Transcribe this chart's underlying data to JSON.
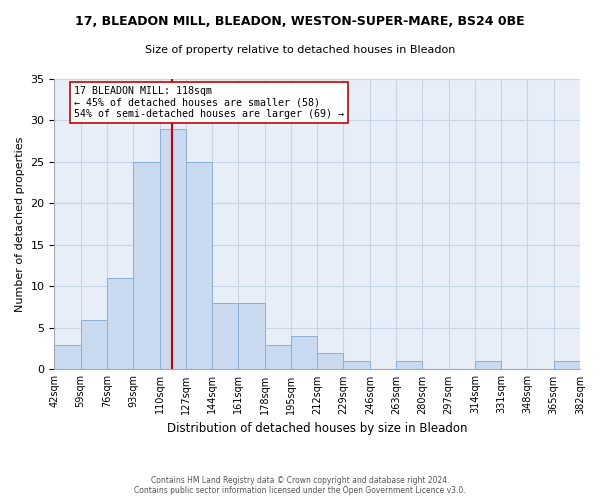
{
  "title_line1": "17, BLEADON MILL, BLEADON, WESTON-SUPER-MARE, BS24 0BE",
  "title_line2": "Size of property relative to detached houses in Bleadon",
  "xlabel": "Distribution of detached houses by size in Bleadon",
  "ylabel": "Number of detached properties",
  "bar_edges": [
    42,
    59,
    76,
    93,
    110,
    127,
    144,
    161,
    178,
    195,
    212,
    229,
    246,
    263,
    280,
    297,
    314,
    331,
    348,
    365,
    382
  ],
  "bar_heights": [
    3,
    6,
    11,
    25,
    29,
    25,
    8,
    8,
    3,
    4,
    2,
    1,
    0,
    1,
    0,
    0,
    1,
    0,
    0,
    1
  ],
  "bar_color": "#c8d9f0",
  "bar_edgecolor": "#8ab0d8",
  "vline_x": 118,
  "vline_color": "#cc0000",
  "annotation_title": "17 BLEADON MILL: 118sqm",
  "annotation_line1": "← 45% of detached houses are smaller (58)",
  "annotation_line2": "54% of semi-detached houses are larger (69) →",
  "annotation_box_edgecolor": "#cc0000",
  "annotation_box_facecolor": "#ffffff",
  "ylim": [
    0,
    35
  ],
  "yticks": [
    0,
    5,
    10,
    15,
    20,
    25,
    30,
    35
  ],
  "tick_labels": [
    "42sqm",
    "59sqm",
    "76sqm",
    "93sqm",
    "110sqm",
    "127sqm",
    "144sqm",
    "161sqm",
    "178sqm",
    "195sqm",
    "212sqm",
    "229sqm",
    "246sqm",
    "263sqm",
    "280sqm",
    "297sqm",
    "314sqm",
    "331sqm",
    "348sqm",
    "365sqm",
    "382sqm"
  ],
  "footer_line1": "Contains HM Land Registry data © Crown copyright and database right 2024.",
  "footer_line2": "Contains public sector information licensed under the Open Government Licence v3.0.",
  "bg_color": "#ffffff",
  "grid_color": "#c8d4e8",
  "plot_bg_color": "#e8eef8"
}
